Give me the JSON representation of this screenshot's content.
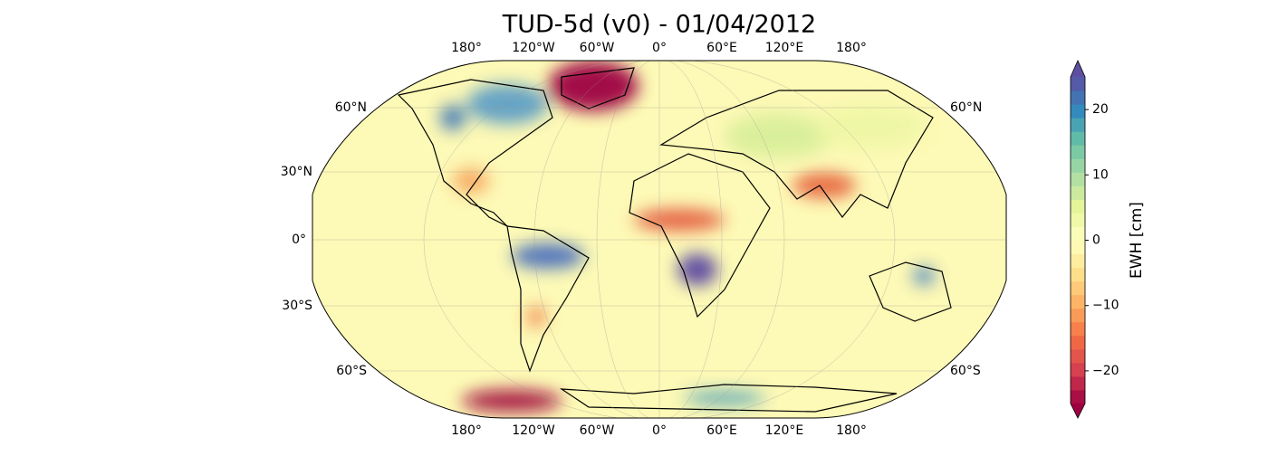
{
  "title": "TUD-5d (v0) - 01/04/2012",
  "map": {
    "lon_labels": [
      "180°",
      "120°W",
      "60°W",
      "0°",
      "60°E",
      "120°E",
      "180°"
    ],
    "lat_labels_left": [
      "60°N",
      "30°N",
      "0°",
      "30°S",
      "60°S"
    ],
    "lat_labels_right": [
      "60°N",
      "60°S"
    ]
  },
  "colorbar": {
    "label": "EWH [cm]",
    "lim": [
      -25,
      25
    ],
    "ticks": [
      {
        "value": -20,
        "label": "−20"
      },
      {
        "value": -10,
        "label": "−10"
      },
      0,
      10,
      20
    ]
  }
}
